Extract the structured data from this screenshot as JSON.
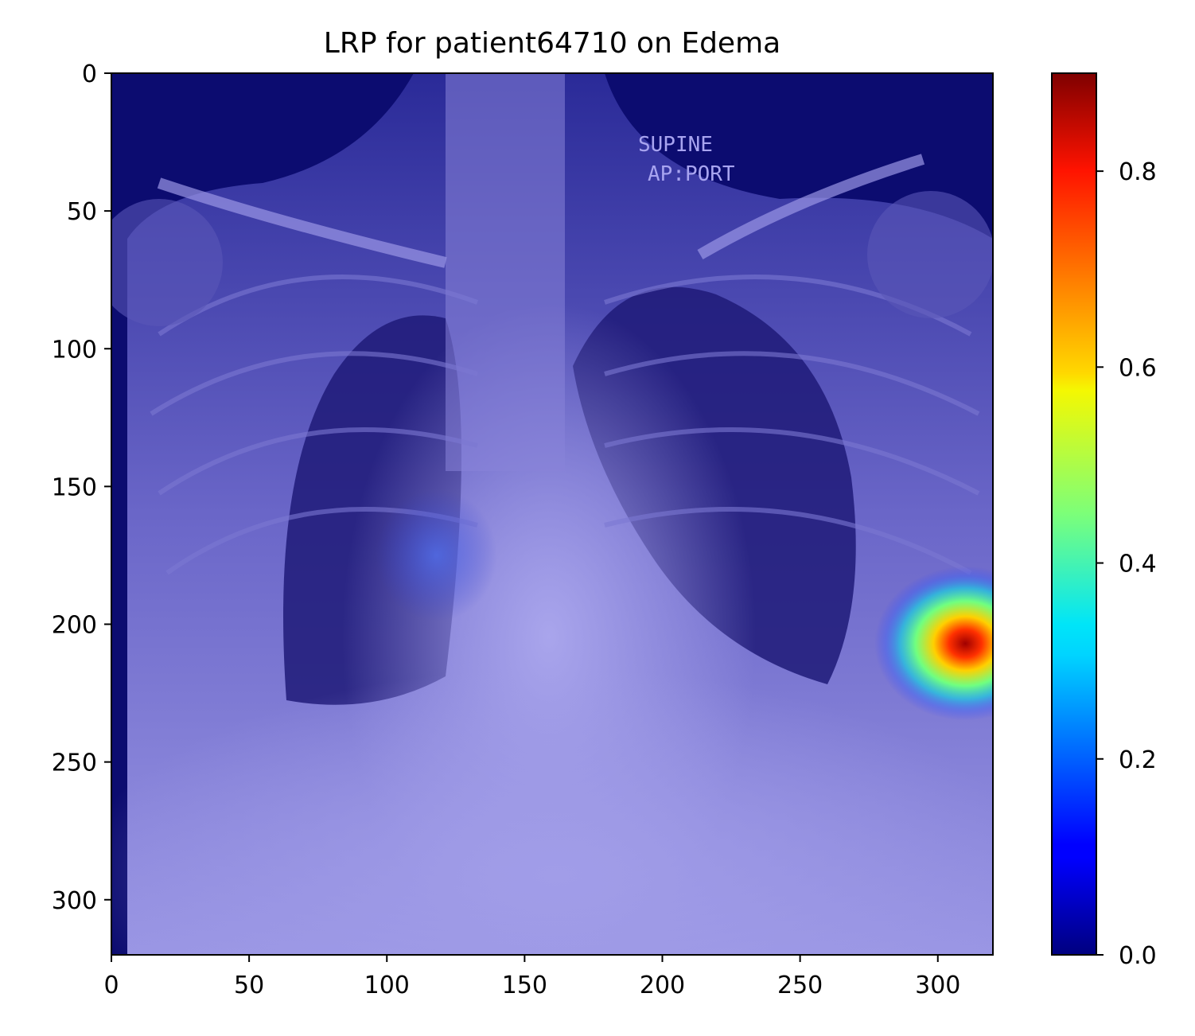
{
  "chart_data": {
    "type": "heatmap",
    "title": "LRP for patient64710 on Edema",
    "image_text": [
      "SUPINE",
      "AP:PORT"
    ],
    "xlim": [
      0,
      320
    ],
    "ylim": [
      320,
      0
    ],
    "x_ticks": [
      0,
      50,
      100,
      150,
      200,
      250,
      300
    ],
    "y_ticks": [
      0,
      50,
      100,
      150,
      200,
      250,
      300
    ],
    "colorbar": {
      "colormap": "jet",
      "range": [
        0.0,
        0.9
      ],
      "ticks": [
        "0.0",
        "0.2",
        "0.4",
        "0.6",
        "0.8"
      ],
      "tick_values": [
        0.0,
        0.2,
        0.4,
        0.6,
        0.8
      ]
    },
    "hotspots": [
      {
        "x": 310,
        "y": 207,
        "sigma_x": 15,
        "sigma_y": 14,
        "value": 0.9
      },
      {
        "x": 118,
        "y": 175,
        "sigma_x": 10,
        "sigma_y": 12,
        "value": 0.08
      }
    ],
    "overlay_color": "#0d0d8f",
    "overlay_light": "#9c98e6"
  }
}
